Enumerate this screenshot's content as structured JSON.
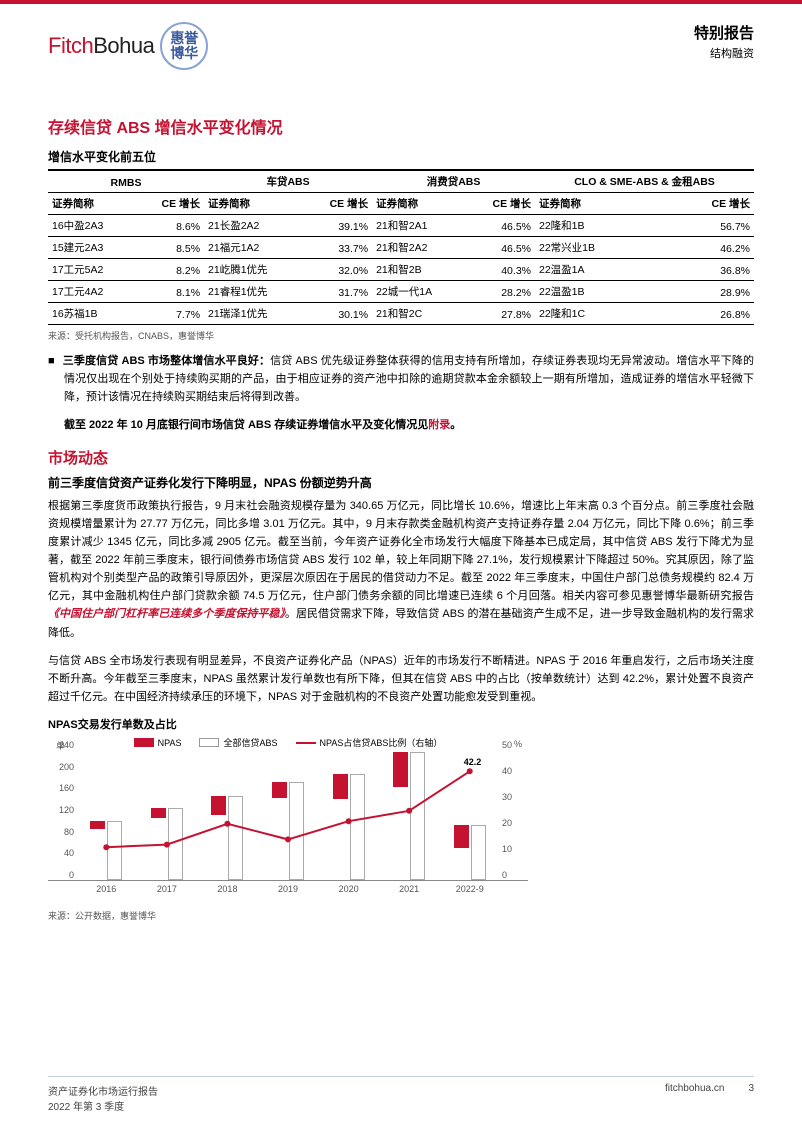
{
  "header": {
    "logo_fitch": "Fitch",
    "logo_bohua": "Bohua",
    "logo_cn_1": "惠誉",
    "logo_cn_2": "博华",
    "report_type": "特别报告",
    "report_cat": "结构融资"
  },
  "section1": {
    "title": "存续信贷 ABS 增信水平变化情况",
    "sub": "增信水平变化前五位",
    "groups": [
      "RMBS",
      "车贷ABS",
      "消费贷ABS",
      "CLO & SME-ABS & 金租ABS"
    ],
    "col_name": "证券简称",
    "col_ce": "CE 增长",
    "rows": [
      [
        "16中盈2A3",
        "8.6%",
        "21长盈2A2",
        "39.1%",
        "21和智2A1",
        "46.5%",
        "22隆和1B",
        "56.7%"
      ],
      [
        "15建元2A3",
        "8.5%",
        "21福元1A2",
        "33.7%",
        "21和智2A2",
        "46.5%",
        "22常兴业1B",
        "46.2%"
      ],
      [
        "17工元5A2",
        "8.2%",
        "21屹腾1优先",
        "32.0%",
        "21和智2B",
        "40.3%",
        "22温盈1A",
        "36.8%"
      ],
      [
        "17工元4A2",
        "8.1%",
        "21睿程1优先",
        "31.7%",
        "22城一代1A",
        "28.2%",
        "22温盈1B",
        "28.9%"
      ],
      [
        "16苏福1B",
        "7.7%",
        "21瑞泽1优先",
        "30.1%",
        "21和智2C",
        "27.8%",
        "22隆和1C",
        "26.8%"
      ]
    ],
    "source": "来源：受托机构报告，CNABS，惠誉博华"
  },
  "bullet1": {
    "marker": "■",
    "bold_lead": "三季度信贷 ABS 市场整体增信水平良好：",
    "text": "信贷 ABS 优先级证券整体获得的信用支持有所增加，存续证券表现均无异常波动。增信水平下降的情况仅出现在个别处于持续购买期的产品，由于相应证券的资产池中扣除的逾期贷款本金余额较上一期有所增加，造成证券的增信水平轻微下降，预计该情况在持续购买期结束后将得到改善。",
    "tail_bold": "截至 2022 年 10 月底银行间市场信贷 ABS 存续证券增信水平及变化情况见",
    "tail_red": "附录",
    "tail_end": "。"
  },
  "section2": {
    "title": "市场动态",
    "sub": "前三季度信贷资产证券化发行下降明显，NPAS 份额逆势升高",
    "p1": "根据第三季度货币政策执行报告，9 月末社会融资规模存量为 340.65 万亿元，同比增长 10.6%，增速比上年末高 0.3 个百分点。前三季度社会融资规模增量累计为 27.77 万亿元，同比多增 3.01 万亿元。其中，9 月末存款类金融机构资产支持证券存量 2.04 万亿元，同比下降 0.6%；前三季度累计减少 1345 亿元，同比多减 2905 亿元。截至当前，今年资产证券化全市场发行大幅度下降基本已成定局，其中信贷 ABS 发行下降尤为显著，截至 2022 年前三季度末，银行间债券市场信贷 ABS 发行 102 单，较上年同期下降 27.1%，发行规模累计下降超过 50%。究其原因，除了监管机构对个别类型产品的政策引导原因外，更深层次原因在于居民的借贷动力不足。截至 2022 年三季度末，中国住户部门总债务规模约 82.4 万亿元，其中金融机构住户部门贷款余额 74.5 万亿元，住户部门债务余额的同比增速已连续 6 个月回落。相关内容可参见惠誉博华最新研究报告",
    "p1_link": "《中国住户部门杠杆率已连续多个季度保持平稳》",
    "p1_tail": "。居民借贷需求下降，导致信贷 ABS 的潜在基础资产生成不足，进一步导致金融机构的发行需求降低。",
    "p2": "与信贷 ABS 全市场发行表现有明显差异，不良资产证券化产品（NPAS）近年的市场发行不断精进。NPAS 于 2016 年重启发行，之后市场关注度不断升高。今年截至三季度末，NPAS 虽然累计发行单数也有所下降，但其在信贷 ABS 中的占比（按单数统计）达到 42.2%，累计处置不良资产超过千亿元。在中国经济持续承压的环境下，NPAS 对于金融机构的不良资产处置功能愈发受到重视。"
  },
  "chart": {
    "title": "NPAS交易发行单数及占比",
    "legend_npas": "NPAS",
    "legend_all": "全部信贷ABS",
    "legend_ratio": "NPAS占信贷ABS比例（右轴）",
    "y_left_label": "单",
    "y_right_label": "%",
    "y_left_ticks": [
      0,
      40,
      80,
      120,
      160,
      200,
      240
    ],
    "y_left_max": 240,
    "y_right_ticks": [
      0,
      10,
      20,
      30,
      40,
      50
    ],
    "y_right_max": 50,
    "x_labels": [
      "2016",
      "2017",
      "2018",
      "2019",
      "2020",
      "2021",
      "2022-9"
    ],
    "npas_values": [
      14,
      19,
      34,
      29,
      45,
      65,
      43
    ],
    "all_values": [
      109,
      134,
      155,
      181,
      195,
      237,
      102
    ],
    "ratio_values": [
      13,
      14,
      22,
      16,
      23,
      27,
      42.2
    ],
    "highlight_ratio": "42.2",
    "colors": {
      "red": "#c41230",
      "box_border": "#aaaaaa",
      "grid": "#e0e0e0"
    },
    "source": "来源：公开数据，惠誉博华"
  },
  "footer": {
    "left1": "资产证券化市场运行报告",
    "left2": "2022 年第 3 季度",
    "site": "fitchbohua.cn",
    "page": "3"
  }
}
